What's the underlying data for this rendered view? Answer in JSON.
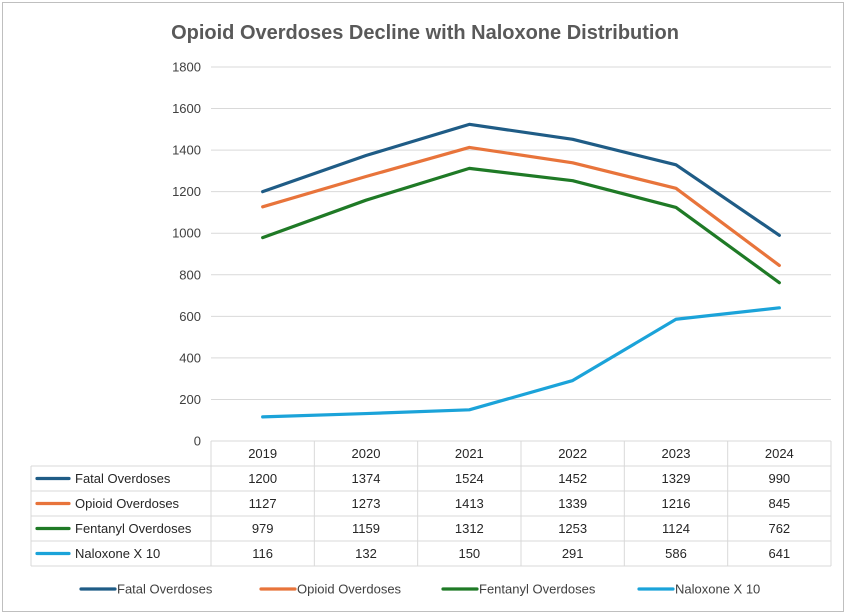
{
  "chart_data": {
    "type": "line",
    "title": "Opioid Overdoses Decline with Naloxone Distribution",
    "categories": [
      "2019",
      "2020",
      "2021",
      "2022",
      "2023",
      "2024"
    ],
    "ylim": [
      0,
      1800
    ],
    "yticks": [
      "0",
      "200",
      "400",
      "600",
      "800",
      "1000",
      "1200",
      "1400",
      "1600",
      "1800"
    ],
    "grid": true,
    "legend_position": "bottom",
    "data_table": true,
    "series": [
      {
        "name": "Fatal Overdoses",
        "color": "#1f5c86",
        "values": [
          1200,
          1374,
          1524,
          1452,
          1329,
          990
        ]
      },
      {
        "name": "Opioid Overdoses",
        "color": "#e8743b",
        "values": [
          1127,
          1273,
          1413,
          1339,
          1216,
          845
        ]
      },
      {
        "name": "Fentanyl Overdoses",
        "color": "#1f7a26",
        "values": [
          979,
          1159,
          1312,
          1253,
          1124,
          762
        ]
      },
      {
        "name": "Naloxone X 10",
        "color": "#1ba3d9",
        "values": [
          116,
          132,
          150,
          291,
          586,
          641
        ]
      }
    ]
  }
}
